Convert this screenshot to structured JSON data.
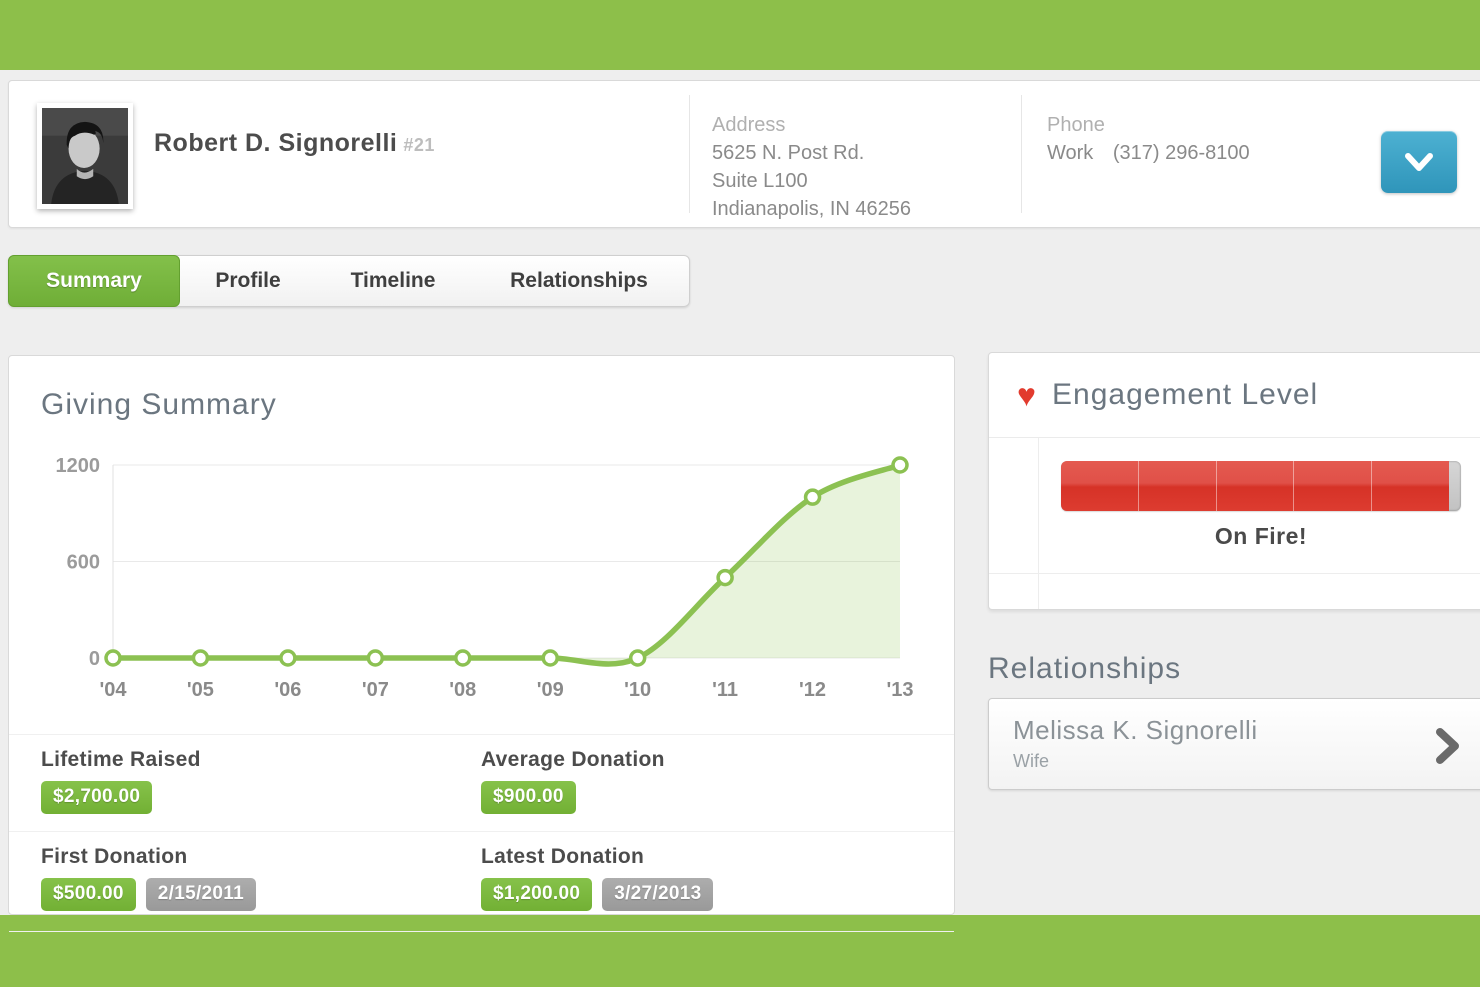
{
  "person": {
    "name": "Robert D. Signorelli",
    "account_number": "#21",
    "address": {
      "label": "Address",
      "line1": "5625 N. Post Rd.",
      "line2": "Suite L100",
      "line3": "Indianapolis, IN 46256"
    },
    "phone": {
      "label": "Phone",
      "type": "Work",
      "number": "(317) 296-8100"
    }
  },
  "tabs": [
    {
      "label": "Summary",
      "active": true
    },
    {
      "label": "Profile",
      "active": false
    },
    {
      "label": "Timeline",
      "active": false
    },
    {
      "label": "Relationships",
      "active": false
    }
  ],
  "giving_summary": {
    "title": "Giving Summary",
    "stats": [
      {
        "label": "Lifetime Raised",
        "badges": [
          {
            "text": "$2,700.00",
            "style": "green"
          }
        ]
      },
      {
        "label": "Average Donation",
        "badges": [
          {
            "text": "$900.00",
            "style": "green"
          }
        ]
      },
      {
        "label": "First Donation",
        "badges": [
          {
            "text": "$500.00",
            "style": "green"
          },
          {
            "text": "2/15/2011",
            "style": "gray"
          }
        ]
      },
      {
        "label": "Latest Donation",
        "badges": [
          {
            "text": "$1,200.00",
            "style": "green"
          },
          {
            "text": "3/27/2013",
            "style": "gray"
          }
        ]
      }
    ]
  },
  "chart_data": {
    "type": "area",
    "title": "Giving Summary",
    "x": [
      "'04",
      "'05",
      "'06",
      "'07",
      "'08",
      "'09",
      "'10",
      "'11",
      "'12",
      "'13"
    ],
    "values": [
      0,
      0,
      0,
      0,
      0,
      0,
      0,
      500,
      1000,
      1200
    ],
    "xlabel": "",
    "ylabel": "",
    "ylim": [
      0,
      1200
    ],
    "yticks": [
      0,
      600,
      1200
    ],
    "grid": true,
    "legend": "none",
    "line_color": "#8cc152",
    "fill_color": "rgba(140,193,82,0.20)",
    "marker_fill": "#ffffff"
  },
  "engagement": {
    "title": "Engagement Level",
    "level_label": "On Fire!",
    "fill_percent": 97,
    "segments": 5,
    "bar_color": "#dd3a2e",
    "track_color": "#c9c9c9"
  },
  "relationships": {
    "title": "Relationships",
    "items": [
      {
        "name": "Melissa K. Signorelli",
        "relation": "Wife"
      }
    ]
  },
  "icons": {
    "heart": "♥"
  },
  "colors": {
    "brand_green": "#8dbf4a",
    "tab_active_green": "#79b93c",
    "badge_green": "#7cb93e",
    "badge_gray": "#a3a3a3",
    "accent_blue": "#3ba3c4",
    "engagement_red": "#dd3a2e",
    "chart_line_green": "#8cc152"
  }
}
